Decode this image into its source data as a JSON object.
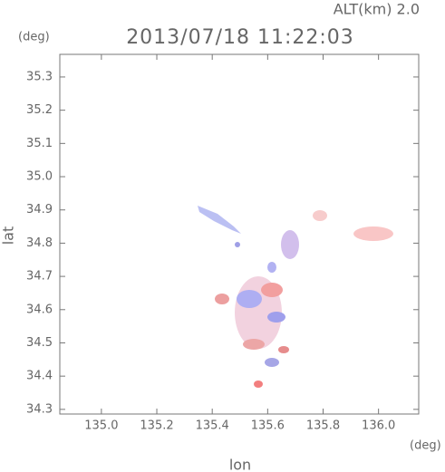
{
  "chart_data": {
    "type": "image",
    "title": "2013/07/18 11:22:03",
    "subtitle": "ALT(km) 2.0",
    "y_unit": "(deg)",
    "x_unit": "(deg)",
    "x_label": "lon",
    "y_label": "lat",
    "xlim": [
      134.85,
      136.145
    ],
    "xticks": [
      {
        "value": 135,
        "label": "135.0"
      },
      135.2,
      135.4,
      135.6,
      135.8,
      {
        "value": 136,
        "label": "136.0"
      }
    ],
    "ylim": [
      34.286,
      35.368
    ],
    "yticks": [
      34.3,
      34.4,
      34.5,
      34.6,
      34.7,
      34.8,
      34.9,
      {
        "value": 35,
        "label": "35.0"
      },
      35.1,
      35.2,
      35.3
    ]
  }
}
